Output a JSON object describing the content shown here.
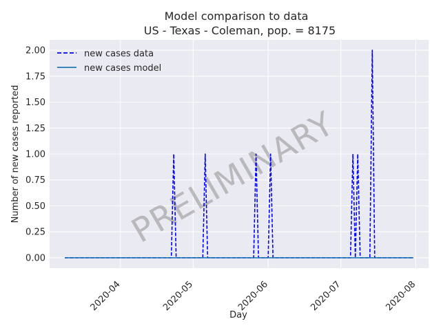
{
  "chart_data": {
    "type": "line",
    "title": "Model comparison to data",
    "subtitle": "US - Texas - Coleman, pop. = 8175",
    "xlabel": "Day",
    "ylabel": "Number of new cases reported",
    "x_range": [
      "2020-03-09",
      "2020-07-31"
    ],
    "ylim": [
      -0.1,
      2.1
    ],
    "x_tick_labels": [
      "2020-04",
      "2020-05",
      "2020-06",
      "2020-07",
      "2020-08"
    ],
    "x_tick_dates": [
      "2020-04-01",
      "2020-05-01",
      "2020-06-01",
      "2020-07-01",
      "2020-08-01"
    ],
    "y_ticks": [
      0.0,
      0.25,
      0.5,
      0.75,
      1.0,
      1.25,
      1.5,
      1.75,
      2.0
    ],
    "y_tick_labels": [
      "0.00",
      "0.25",
      "0.50",
      "0.75",
      "1.00",
      "1.25",
      "1.50",
      "1.75",
      "2.00"
    ],
    "grid": true,
    "legend_position": "top-left",
    "watermark": "PRELIMINARY",
    "series": [
      {
        "name": "new cases data",
        "style": "dashed",
        "color": "#0000ff",
        "x": [
          "2020-03-09",
          "2020-04-22",
          "2020-04-23",
          "2020-04-24",
          "2020-05-05",
          "2020-05-06",
          "2020-05-07",
          "2020-05-26",
          "2020-05-27",
          "2020-05-28",
          "2020-06-01",
          "2020-06-02",
          "2020-06-03",
          "2020-07-05",
          "2020-07-06",
          "2020-07-07",
          "2020-07-08",
          "2020-07-09",
          "2020-07-13",
          "2020-07-14",
          "2020-07-15",
          "2020-07-31"
        ],
        "y": [
          0,
          0,
          1,
          0,
          0,
          1,
          0,
          0,
          1,
          0,
          0,
          1,
          0,
          0,
          1,
          0,
          1,
          0,
          0,
          2,
          0,
          0
        ]
      },
      {
        "name": "new cases model",
        "style": "solid",
        "color": "#1f77b4",
        "x": [
          "2020-03-09",
          "2020-07-31"
        ],
        "y": [
          0,
          0
        ]
      }
    ]
  },
  "colors": {
    "plot_background": "#eaeaf2",
    "grid": "#ffffff",
    "data_line": "#0000ff",
    "model_line": "#1f77b4"
  }
}
